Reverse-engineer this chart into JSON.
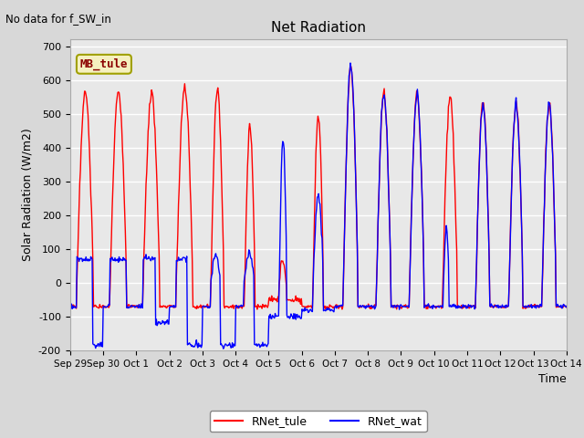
{
  "title": "Net Radiation",
  "annotation": "No data for f_SW_in",
  "xlabel": "Time",
  "ylabel": "Solar Radiation (W/m2)",
  "ylim": [
    -200,
    720
  ],
  "yticks": [
    -200,
    -100,
    0,
    100,
    200,
    300,
    400,
    500,
    600,
    700
  ],
  "mb_label": "MB_tule",
  "legend_entries": [
    "RNet_tule",
    "RNet_wat"
  ],
  "line_colors": [
    "red",
    "blue"
  ],
  "background_color": "#e8e8e8",
  "plot_bg_color": "#e8e8e8",
  "grid_color": "white",
  "n_days": 15,
  "pts_per_day": 48
}
